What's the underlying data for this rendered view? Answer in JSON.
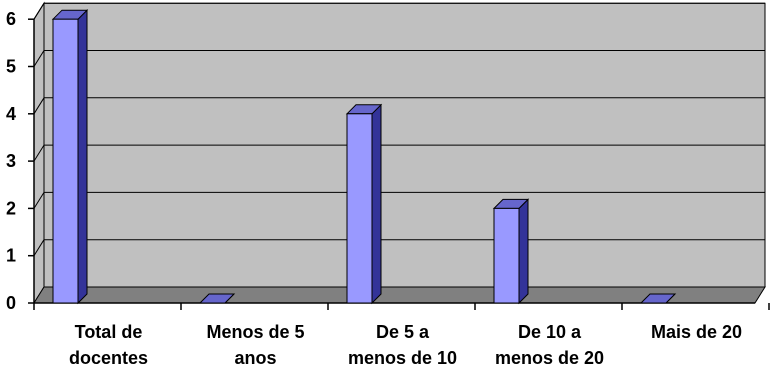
{
  "chart_data": {
    "type": "bar",
    "categories": [
      [
        "Total de",
        "docentes"
      ],
      [
        "Menos de 5",
        "anos"
      ],
      [
        "De 5 a",
        "menos de 10"
      ],
      [
        "De 10 a",
        "menos de 20"
      ],
      [
        "Mais de 20"
      ]
    ],
    "values": [
      6,
      0,
      4,
      2,
      0
    ],
    "ylim": [
      0,
      6
    ],
    "yticks": [
      0,
      1,
      2,
      3,
      4,
      5,
      6
    ],
    "grid": true,
    "style": "3d",
    "colors": {
      "bar_front": "#9999ff",
      "bar_side": "#333399",
      "bar_top": "#6666cc",
      "wall": "#c0c0c0",
      "floor": "#808080",
      "grid": "#000000"
    }
  }
}
